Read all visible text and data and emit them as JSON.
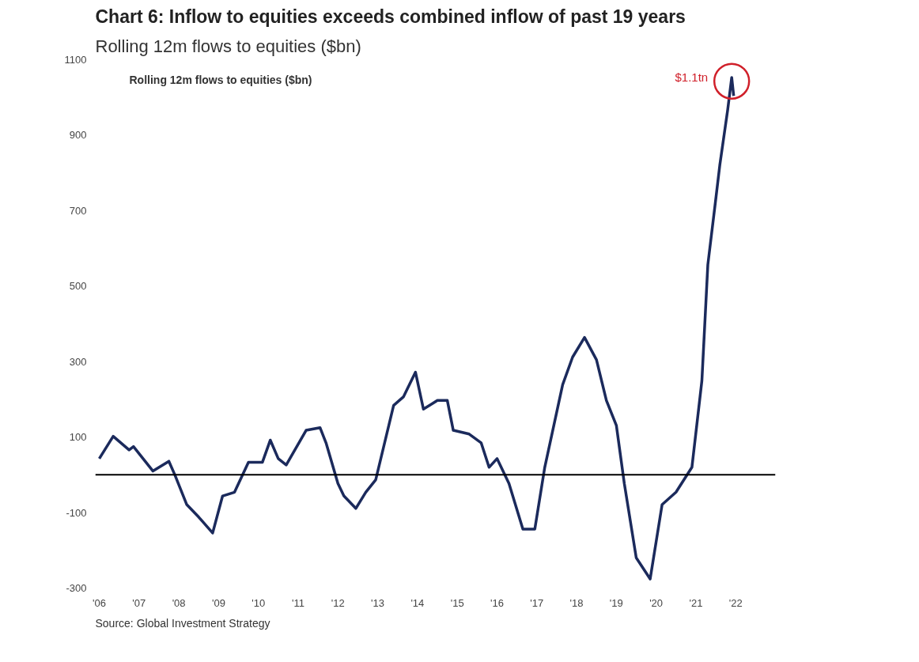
{
  "chart_data": {
    "type": "line",
    "title": "Chart 6: Inflow to equities exceeds combined inflow of past 19 years",
    "subtitle": "Rolling 12m flows to equities ($bn)",
    "annotations": [
      "Rolling 12m flows to equities ($bn)",
      {
        "text": "$1.1tn",
        "x": 2021.9,
        "y": 1053
      },
      "Source: Global Investment Strategy"
    ],
    "series": [
      {
        "color": "#1b2a5c",
        "x": [
          2006.0,
          2006.35,
          2006.75,
          2006.86,
          2007.35,
          2007.75,
          2007.9,
          2008.2,
          2008.5,
          2008.85,
          2009.1,
          2009.4,
          2009.75,
          2010.1,
          2010.3,
          2010.5,
          2010.7,
          2011.2,
          2011.55,
          2011.7,
          2012.0,
          2012.15,
          2012.45,
          2012.7,
          2012.95,
          2013.4,
          2013.65,
          2013.95,
          2014.15,
          2014.5,
          2014.75,
          2014.9,
          2015.3,
          2015.6,
          2015.8,
          2016.0,
          2016.3,
          2016.65,
          2016.95,
          2017.2,
          2017.65,
          2017.9,
          2018.2,
          2018.5,
          2018.75,
          2019.0,
          2019.2,
          2019.5,
          2019.85,
          2020.15,
          2020.5,
          2020.9,
          2021.15,
          2021.3,
          2021.5,
          2021.6,
          2021.8,
          2021.9,
          2021.95
        ],
        "values": [
          43,
          102,
          66,
          75,
          10,
          36,
          0,
          -79,
          -112,
          -154,
          -56,
          -46,
          33,
          33,
          92,
          43,
          26,
          118,
          125,
          85,
          -23,
          -56,
          -89,
          -46,
          -13,
          184,
          207,
          272,
          174,
          197,
          197,
          118,
          108,
          85,
          20,
          43,
          -23,
          -144,
          -144,
          20,
          239,
          312,
          364,
          305,
          197,
          131,
          -23,
          -220,
          -276,
          -79,
          -46,
          20,
          249,
          557,
          731,
          820,
          968,
          1053,
          1004
        ]
      }
    ],
    "xlim": [
      2005.9,
      2023.0
    ],
    "ylim": [
      -300,
      1100
    ],
    "xticks": [
      {
        "value": 2006,
        "label": "'06"
      },
      {
        "value": 2007,
        "label": "'07"
      },
      {
        "value": 2008,
        "label": "'08"
      },
      {
        "value": 2009,
        "label": "'09"
      },
      {
        "value": 2010,
        "label": "'10"
      },
      {
        "value": 2011,
        "label": "'11"
      },
      {
        "value": 2012,
        "label": "'12"
      },
      {
        "value": 2013,
        "label": "'13"
      },
      {
        "value": 2014,
        "label": "'14"
      },
      {
        "value": 2015,
        "label": "'15"
      },
      {
        "value": 2016,
        "label": "'16"
      },
      {
        "value": 2017,
        "label": "'17"
      },
      {
        "value": 2018,
        "label": "'18"
      },
      {
        "value": 2019,
        "label": "'19"
      },
      {
        "value": 2020,
        "label": "'20"
      },
      {
        "value": 2021,
        "label": "'21"
      },
      {
        "value": 2022,
        "label": "'22"
      }
    ],
    "yticks": [
      -300,
      -100,
      100,
      300,
      500,
      700,
      900,
      1100
    ],
    "ref_lines": [
      {
        "axis": "y",
        "value": 0,
        "color": "#000000"
      }
    ],
    "grid": false,
    "line_style": "solid",
    "marker": "none"
  }
}
